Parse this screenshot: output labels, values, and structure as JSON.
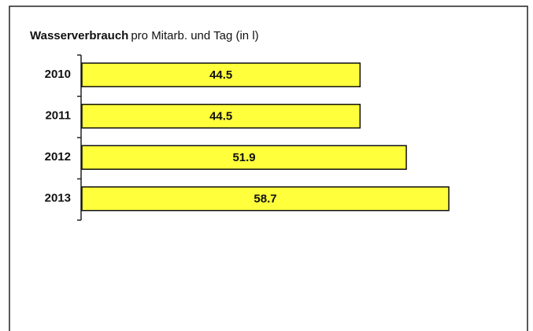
{
  "chart_data": {
    "type": "barh",
    "title": [
      "Wasserverbrauch",
      "pro Mitarb. und Tag (in l)"
    ],
    "categories": [
      "2010",
      "2011",
      "2012",
      "2013"
    ],
    "values": [
      44.5,
      44.5,
      51.9,
      58.7
    ],
    "color": "#ffff3c"
  }
}
